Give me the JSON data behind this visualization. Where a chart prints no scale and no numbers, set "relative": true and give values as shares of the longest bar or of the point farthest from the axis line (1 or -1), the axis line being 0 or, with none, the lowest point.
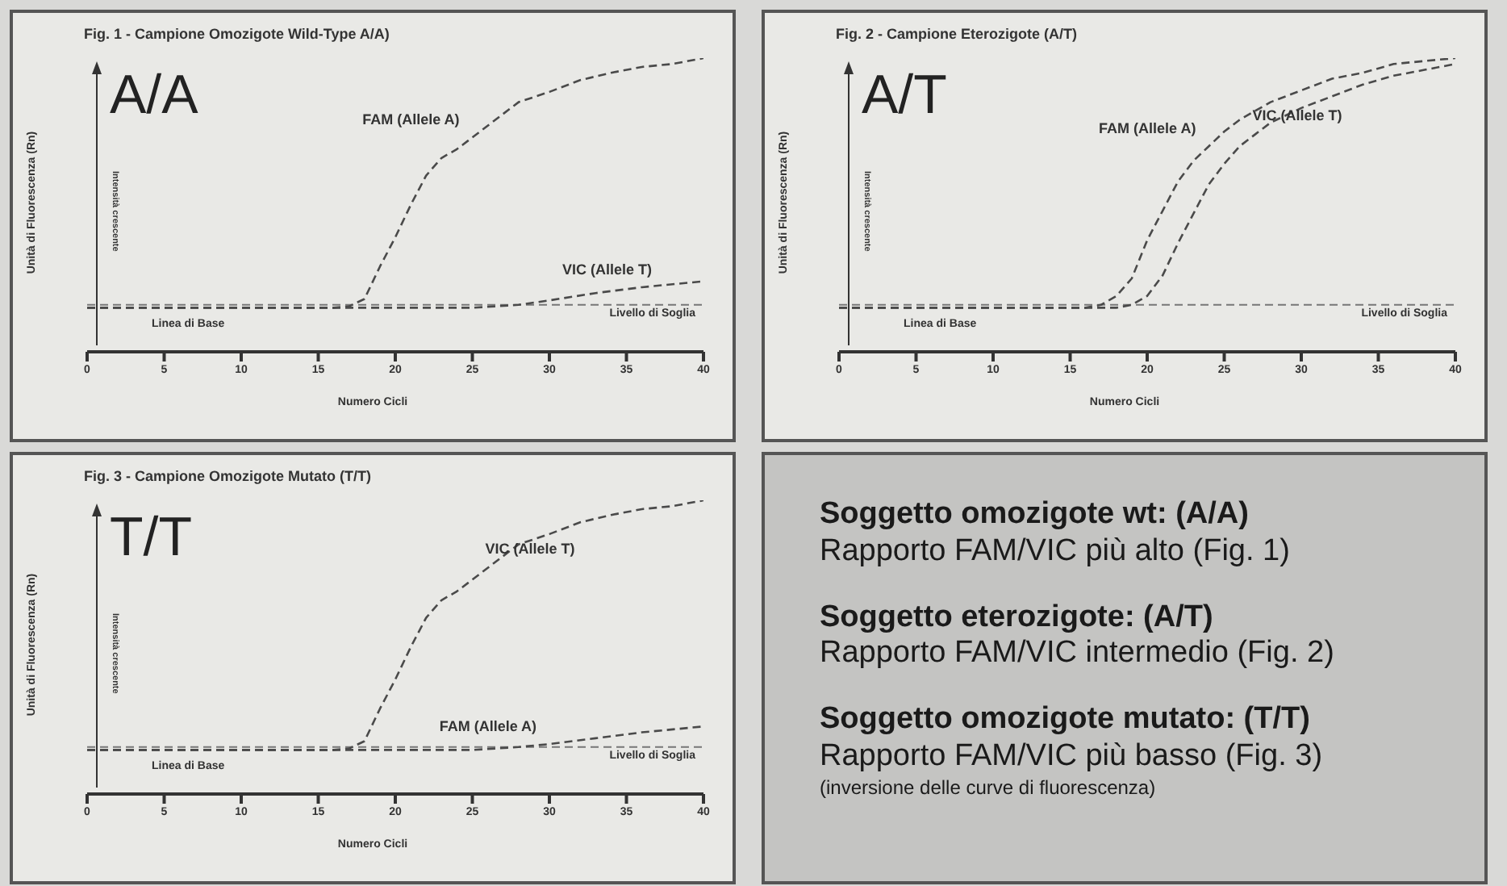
{
  "chart_data": [
    {
      "type": "line",
      "title": "Fig. 1 - Campione Omozigote Wild-Type A/A)",
      "xlabel": "Numero Cicli",
      "ylabel": "Unità di Fluorescenza (Rn)",
      "relative": true,
      "xlim": [
        0,
        40
      ],
      "xticks": [
        0,
        5,
        10,
        15,
        20,
        25,
        30,
        35,
        40
      ],
      "tick_labels": "x",
      "line_style": "dashed",
      "marker": "none",
      "grid": false,
      "annotations": [
        "A/A",
        "Intensità crescente",
        "Linea di Base"
      ],
      "ref_lines": [
        {
          "axis": "y",
          "value": 0.16,
          "label": "Livello di Soglia",
          "color": "#777777",
          "line_style": "dashed"
        }
      ],
      "series": [
        {
          "name": "FAM (Allele A)",
          "color": "#4a4a4a",
          "x": [
            0,
            5,
            10,
            15,
            16,
            17,
            18,
            19,
            20,
            21,
            22,
            23,
            24,
            25,
            26,
            27,
            28,
            30,
            32,
            34,
            36,
            38,
            40
          ],
          "values": [
            0.15,
            0.15,
            0.15,
            0.15,
            0.15,
            0.155,
            0.18,
            0.29,
            0.39,
            0.5,
            0.6,
            0.66,
            0.69,
            0.73,
            0.77,
            0.81,
            0.85,
            0.885,
            0.925,
            0.95,
            0.97,
            0.98,
            1
          ]
        },
        {
          "name": "VIC (Allele T)",
          "color": "#4a4a4a",
          "x": [
            0,
            5,
            10,
            15,
            20,
            25,
            28,
            30,
            33,
            36,
            40
          ],
          "values": [
            0.15,
            0.15,
            0.15,
            0.15,
            0.15,
            0.15,
            0.16,
            0.175,
            0.2,
            0.22,
            0.24
          ]
        }
      ]
    },
    {
      "type": "line",
      "title": "Fig. 2 - Campione Eterozigote (A/T)",
      "xlabel": "Numero Cicli",
      "ylabel": "Unità di Fluorescenza (Rn)",
      "relative": true,
      "xlim": [
        0,
        40
      ],
      "xticks": [
        0,
        5,
        10,
        15,
        20,
        25,
        30,
        35,
        40
      ],
      "tick_labels": "x",
      "line_style": "dashed",
      "marker": "none",
      "grid": false,
      "annotations": [
        "A/T",
        "Intensità crescente",
        "Linea di Base"
      ],
      "ref_lines": [
        {
          "axis": "y",
          "value": 0.16,
          "label": "Livello di Soglia",
          "color": "#777777",
          "line_style": "dashed"
        }
      ],
      "series": [
        {
          "name": "FAM (Allele A)",
          "color": "#4a4a4a",
          "x": [
            0,
            5,
            10,
            15,
            16,
            17,
            18,
            19,
            20,
            21,
            22,
            23,
            24,
            25,
            26,
            28,
            30,
            32,
            34,
            36,
            38,
            40
          ],
          "values": [
            0.15,
            0.15,
            0.15,
            0.15,
            0.15,
            0.16,
            0.19,
            0.25,
            0.38,
            0.48,
            0.58,
            0.65,
            0.7,
            0.75,
            0.79,
            0.85,
            0.89,
            0.93,
            0.95,
            0.98,
            0.99,
            1
          ]
        },
        {
          "name": "VIC (Allele T)",
          "color": "#4a4a4a",
          "x": [
            0,
            5,
            10,
            15,
            18,
            19,
            20,
            21,
            22,
            23,
            24,
            25,
            26,
            27,
            28,
            30,
            32,
            34,
            36,
            38,
            40
          ],
          "values": [
            0.15,
            0.15,
            0.15,
            0.15,
            0.15,
            0.16,
            0.19,
            0.26,
            0.37,
            0.47,
            0.57,
            0.64,
            0.7,
            0.74,
            0.78,
            0.83,
            0.87,
            0.91,
            0.94,
            0.96,
            0.98
          ]
        }
      ]
    },
    {
      "type": "line",
      "title": "Fig. 3 - Campione Omozigote Mutato (T/T)",
      "xlabel": "Numero Cicli",
      "ylabel": "Unità di Fluorescenza (Rn)",
      "relative": true,
      "xlim": [
        0,
        40
      ],
      "xticks": [
        0,
        5,
        10,
        15,
        20,
        25,
        30,
        35,
        40
      ],
      "tick_labels": "x",
      "line_style": "dashed",
      "marker": "none",
      "grid": false,
      "annotations": [
        "T/T",
        "Intensità crescente",
        "Linea di Base"
      ],
      "ref_lines": [
        {
          "axis": "y",
          "value": 0.16,
          "label": "Livello di Soglia",
          "color": "#777777",
          "line_style": "dashed"
        }
      ],
      "series": [
        {
          "name": "FAM (Allele A)",
          "color": "#4a4a4a",
          "x": [
            0,
            5,
            10,
            15,
            20,
            25,
            28,
            30,
            33,
            36,
            40
          ],
          "values": [
            0.15,
            0.15,
            0.15,
            0.15,
            0.15,
            0.15,
            0.16,
            0.17,
            0.19,
            0.21,
            0.23
          ]
        },
        {
          "name": "VIC (Allele T)",
          "color": "#4a4a4a",
          "x": [
            0,
            5,
            10,
            15,
            16,
            17,
            18,
            19,
            20,
            21,
            22,
            23,
            24,
            25,
            26,
            27,
            28,
            30,
            32,
            34,
            36,
            38,
            40
          ],
          "values": [
            0.15,
            0.15,
            0.15,
            0.15,
            0.15,
            0.155,
            0.18,
            0.29,
            0.39,
            0.5,
            0.6,
            0.66,
            0.69,
            0.73,
            0.77,
            0.81,
            0.85,
            0.885,
            0.925,
            0.95,
            0.97,
            0.98,
            1
          ]
        }
      ]
    },
    {
      "type": "other",
      "annotations": [
        "Soggetto omozigote wt: (A/A)",
        "Rapporto FAM/VIC più alto (Fig. 1)",
        "Soggetto eterozigote: (A/T)",
        "Rapporto FAM/VIC intermedio (Fig. 2)",
        "Soggetto omozigote mutato: (T/T)",
        "Rapporto FAM/VIC più basso (Fig. 3)",
        "(inversione delle curve di fluorescenza)"
      ]
    }
  ]
}
